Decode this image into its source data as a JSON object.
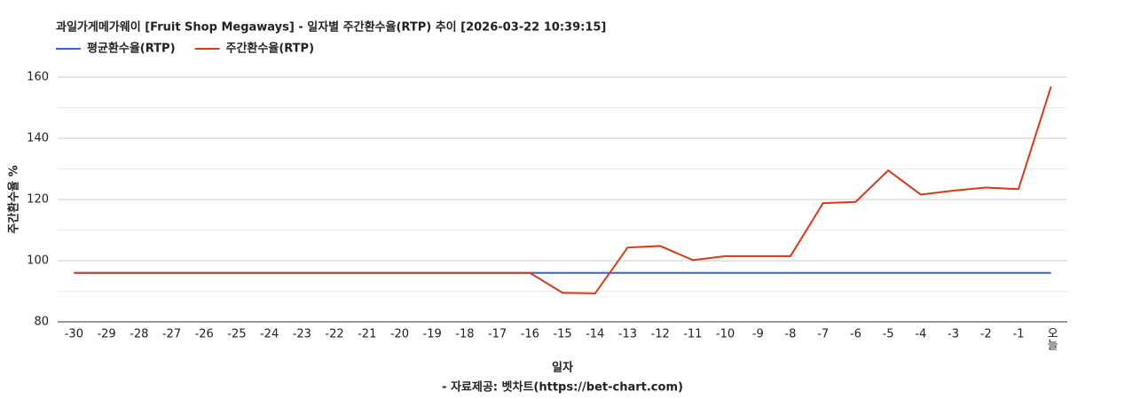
{
  "chart_data": {
    "type": "line",
    "title": "과일가게메가웨이 [Fruit Shop Megaways] - 일자별 주간환수율(RTP) 추이 [2026-03-22 10:39:15]",
    "x_label": "일자",
    "y_label": "주간환수율 %",
    "source": "- 자료제공: 벳차트(https://bet-chart.com)",
    "categories": [
      "-30",
      "-29",
      "-28",
      "-27",
      "-26",
      "-25",
      "-24",
      "-23",
      "-22",
      "-21",
      "-20",
      "-19",
      "-18",
      "-17",
      "-16",
      "-15",
      "-14",
      "-13",
      "-12",
      "-11",
      "-10",
      "-9",
      "-8",
      "-7",
      "-6",
      "-5",
      "-4",
      "-3",
      "-2",
      "-1",
      "오늘"
    ],
    "series": [
      {
        "name": "평균환수율(RTP)",
        "color": "#3366cc",
        "values": [
          96,
          96,
          96,
          96,
          96,
          96,
          96,
          96,
          96,
          96,
          96,
          96,
          96,
          96,
          96,
          96,
          96,
          96,
          96,
          96,
          96,
          96,
          96,
          96,
          96,
          96,
          96,
          96,
          96,
          96,
          96
        ]
      },
      {
        "name": "주간환수율(RTP)",
        "color": "#dc3912",
        "values": [
          96,
          96,
          96,
          96,
          96,
          96,
          96,
          96,
          96,
          96,
          96,
          96,
          96,
          96,
          96,
          89.5,
          89.3,
          104.3,
          104.8,
          100.2,
          101.5,
          101.5,
          101.5,
          118.8,
          119.2,
          129.5,
          121.6,
          122.9,
          123.9,
          123.4,
          156.9
        ]
      }
    ],
    "ylim": [
      80,
      160
    ],
    "yticks": [
      80,
      100,
      120,
      140,
      160
    ],
    "grid": true
  }
}
